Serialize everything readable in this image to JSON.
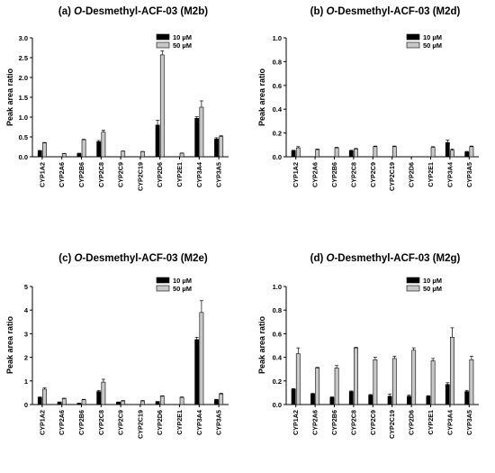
{
  "chart_data": [
    {
      "type": "bar",
      "title": {
        "label": "(a) ",
        "italic": "O",
        "rest": "-Desmethyl-ACF-03 (M2b)"
      },
      "ylabel": "Peak area ratio",
      "ylim": [
        0,
        3.0
      ],
      "yticks": [
        "0.0",
        "0.5",
        "1.0",
        "1.5",
        "2.0",
        "2.5",
        "3.0"
      ],
      "legend_position": "top-right",
      "categories": [
        "CYP1A2",
        "CYP2A6",
        "CYP2B6",
        "CYP2C8",
        "CYP2C9",
        "CYP2C19",
        "CYP2D6",
        "CYP2E1",
        "CYP3A4",
        "CYP3A5"
      ],
      "series": [
        {
          "name": "10 µM",
          "values": [
            0.15,
            0,
            0.08,
            0.38,
            0,
            0,
            0.8,
            0,
            0.97,
            0.45
          ],
          "errors": [
            0.01,
            0,
            0.01,
            0.03,
            0,
            0,
            0.12,
            0,
            0.04,
            0.03
          ]
        },
        {
          "name": "50 µM",
          "values": [
            0.35,
            0.08,
            0.43,
            0.62,
            0.14,
            0.13,
            2.57,
            0.09,
            1.25,
            0.51
          ],
          "errors": [
            0.01,
            0.005,
            0.01,
            0.05,
            0.005,
            0.005,
            0.1,
            0.005,
            0.16,
            0.02
          ]
        }
      ]
    },
    {
      "type": "bar",
      "title": {
        "label": "(b) ",
        "italic": "O",
        "rest": "-Desmethyl-ACF-03 (M2d)"
      },
      "ylabel": "Peak area ratio",
      "ylim": [
        0,
        1.0
      ],
      "yticks": [
        "0.0",
        "0.2",
        "0.4",
        "0.6",
        "0.8",
        "1.0"
      ],
      "legend_position": "top-right",
      "categories": [
        "CYP1A2",
        "CYP2A6",
        "CYP2B6",
        "CYP2C8",
        "CYP2C9",
        "CYP2C19",
        "CYP2D6",
        "CYP2E1",
        "CYP3A4",
        "CYP3A5"
      ],
      "series": [
        {
          "name": "10 µM",
          "values": [
            0.05,
            0,
            0,
            0.05,
            0,
            0,
            0,
            0,
            0.12,
            0.04
          ],
          "errors": [
            0.005,
            0,
            0,
            0.005,
            0,
            0,
            0,
            0,
            0.02,
            0.005
          ]
        },
        {
          "name": "50 µM",
          "values": [
            0.075,
            0.06,
            0.075,
            0.065,
            0.085,
            0.085,
            0,
            0.08,
            0.055,
            0.085
          ],
          "errors": [
            0.01,
            0.005,
            0.005,
            0.005,
            0.005,
            0.005,
            0,
            0.005,
            0.01,
            0.005
          ]
        }
      ]
    },
    {
      "type": "bar",
      "title": {
        "label": "(c) ",
        "italic": "O",
        "rest": "-Desmethyl-ACF-03 (M2e)"
      },
      "ylabel": "Peak area ratio",
      "ylim": [
        0,
        5
      ],
      "yticks": [
        "0",
        "1",
        "2",
        "3",
        "4",
        "5"
      ],
      "legend_position": "top-right",
      "categories": [
        "CYP1A2",
        "CYP2A6",
        "CYP2B6",
        "CYP2C8",
        "CYP2C9",
        "CYP2C19",
        "CYP2D6",
        "CYP2E1",
        "CYP3A4",
        "CYP3A5"
      ],
      "series": [
        {
          "name": "10 µM",
          "values": [
            0.3,
            0.1,
            0.05,
            0.55,
            0.1,
            0,
            0.12,
            0,
            2.75,
            0.2
          ],
          "errors": [
            0.02,
            0.01,
            0.01,
            0.05,
            0.01,
            0,
            0.01,
            0,
            0.1,
            0.02
          ]
        },
        {
          "name": "50 µM",
          "values": [
            0.65,
            0.25,
            0.2,
            0.95,
            0.15,
            0.15,
            0.35,
            0.3,
            3.9,
            0.45
          ],
          "errors": [
            0.05,
            0.02,
            0.02,
            0.12,
            0.02,
            0.02,
            0.02,
            0.02,
            0.5,
            0.03
          ]
        }
      ]
    },
    {
      "type": "bar",
      "title": {
        "label": "(d) ",
        "italic": "O",
        "rest": "-Desmethyl-ACF-03 (M2g)"
      },
      "ylabel": "Peak area ratio",
      "ylim": [
        0,
        1.0
      ],
      "yticks": [
        "0.0",
        "0.2",
        "0.4",
        "0.6",
        "0.8",
        "1.0"
      ],
      "legend_position": "top-right",
      "categories": [
        "CYP1A2",
        "CYP2A6",
        "CYP2B6",
        "CYP2C8",
        "CYP2C9",
        "CYP2C19",
        "CYP2D6",
        "CYP2E1",
        "CYP3A4",
        "CYP3A5"
      ],
      "series": [
        {
          "name": "10 µM",
          "values": [
            0.13,
            0.09,
            0.06,
            0.11,
            0.08,
            0.07,
            0.07,
            0.07,
            0.17,
            0.11
          ],
          "errors": [
            0.005,
            0.005,
            0.005,
            0.005,
            0.005,
            0.02,
            0.01,
            0.005,
            0.015,
            0.01
          ]
        },
        {
          "name": "50 µM",
          "values": [
            0.43,
            0.31,
            0.31,
            0.48,
            0.38,
            0.39,
            0.46,
            0.37,
            0.57,
            0.38
          ],
          "errors": [
            0.05,
            0.005,
            0.02,
            0.005,
            0.02,
            0.02,
            0.02,
            0.02,
            0.08,
            0.03
          ]
        }
      ]
    }
  ],
  "colors": {
    "series_10": "#000000",
    "series_50": "#c8c8c8",
    "axis": "#000000"
  }
}
